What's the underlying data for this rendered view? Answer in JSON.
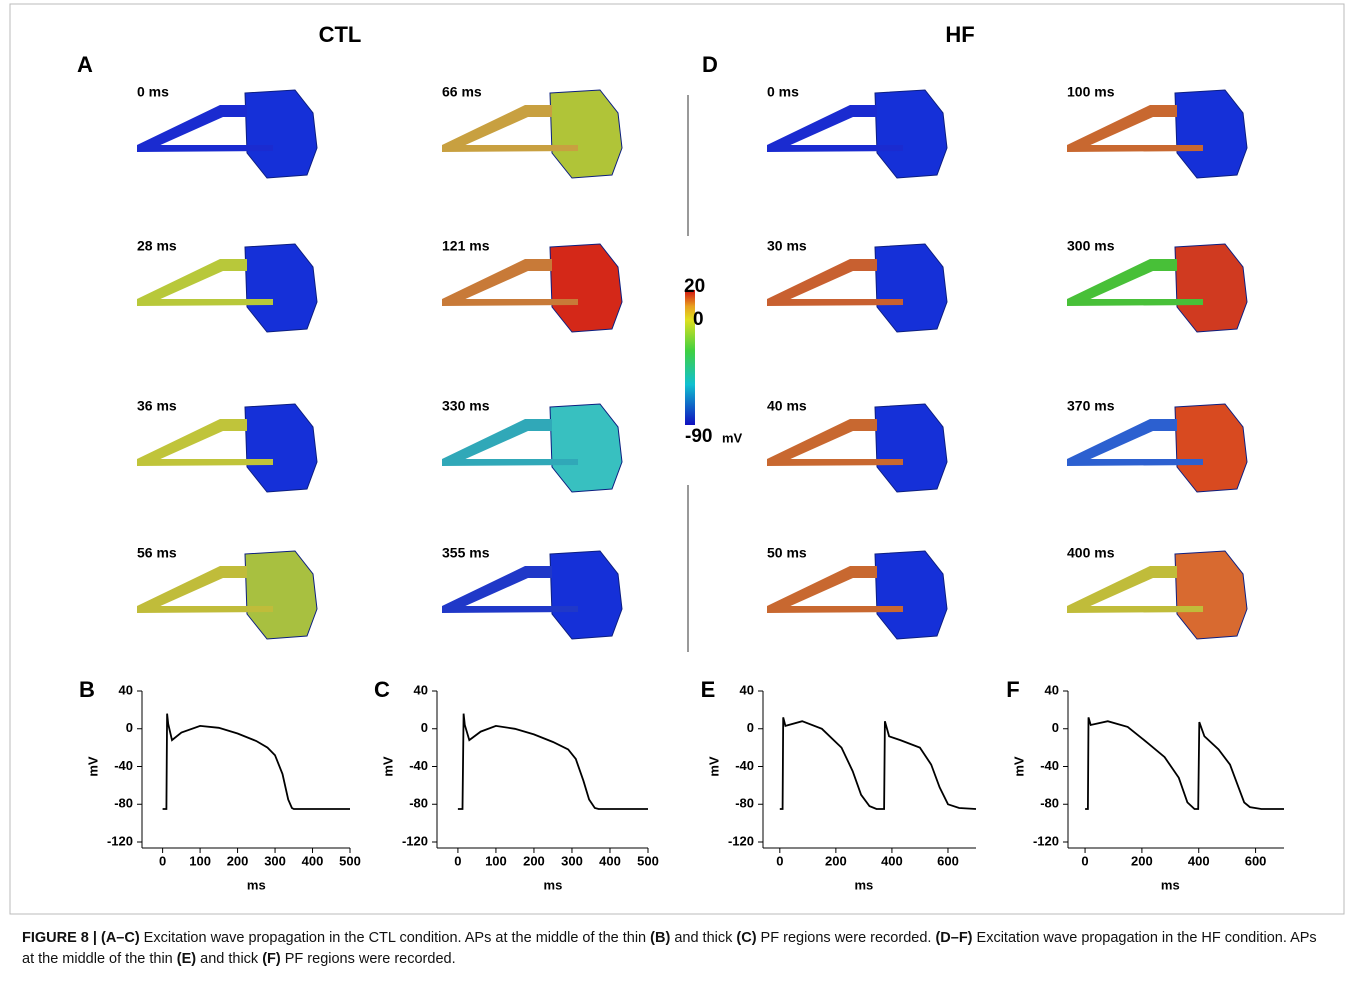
{
  "figure": {
    "columns": [
      {
        "title": "CTL",
        "panel": "A",
        "snapshots": [
          {
            "time": "0 ms",
            "cable_color": "#1a2bd0",
            "tissue_color": "#1530d8"
          },
          {
            "time": "28 ms",
            "cable_color": "#b8c83a",
            "tissue_color": "#1530d8"
          },
          {
            "time": "36 ms",
            "cable_color": "#c0c43a",
            "tissue_color": "#1530d8"
          },
          {
            "time": "56 ms",
            "cable_color": "#c0bc3a",
            "tissue_color": "#a8c040"
          },
          {
            "time": "66 ms",
            "cable_color": "#c8a040",
            "tissue_color": "#b0c438"
          },
          {
            "time": "121 ms",
            "cable_color": "#c87a38",
            "tissue_color": "#d42818"
          },
          {
            "time": "330 ms",
            "cable_color": "#30a8b8",
            "tissue_color": "#38c0c0"
          },
          {
            "time": "355 ms",
            "cable_color": "#2038c8",
            "tissue_color": "#1530d8"
          }
        ]
      },
      {
        "title": "HF",
        "panel": "D",
        "snapshots": [
          {
            "time": "0 ms",
            "cable_color": "#1a2bd0",
            "tissue_color": "#1530d8"
          },
          {
            "time": "30 ms",
            "cable_color": "#c86030",
            "tissue_color": "#1530d8"
          },
          {
            "time": "40 ms",
            "cable_color": "#c86830",
            "tissue_color": "#1530d8"
          },
          {
            "time": "50 ms",
            "cable_color": "#c86830",
            "tissue_color": "#1530d8"
          },
          {
            "time": "100 ms",
            "cable_color": "#c86830",
            "tissue_color": "#1530d8"
          },
          {
            "time": "300 ms",
            "cable_color": "#48c038",
            "tissue_color": "#d03a20"
          },
          {
            "time": "370 ms",
            "cable_color": "#2c60d0",
            "tissue_color": "#d84a20"
          },
          {
            "time": "400 ms",
            "cable_color": "#c0bc3a",
            "tissue_color": "#d86a30"
          }
        ]
      }
    ],
    "colorbar": {
      "max": "20",
      "zero": "0",
      "min": "-90",
      "unit": "mV"
    },
    "caption": [
      {
        "text": "FIGURE 8 | (A–C)",
        "bold": true
      },
      {
        "text": " Excitation wave propagation in the CTL condition. APs at the middle of the thin ",
        "bold": false
      },
      {
        "text": "(B)",
        "bold": true
      },
      {
        "text": " and thick ",
        "bold": false
      },
      {
        "text": "(C)",
        "bold": true
      },
      {
        "text": " PF regions were recorded. ",
        "bold": false
      },
      {
        "text": "(D–F)",
        "bold": true
      },
      {
        "text": " Excitation wave propagation in the HF condition. APs at the middle of the thin ",
        "bold": false
      },
      {
        "text": "(E)",
        "bold": true
      },
      {
        "text": " and thick ",
        "bold": false
      },
      {
        "text": "(F)",
        "bold": true
      },
      {
        "text": " PF regions were recorded.",
        "bold": false
      }
    ]
  },
  "chart_data": [
    {
      "type": "line",
      "panel": "B",
      "xlabel": "ms",
      "ylabel": "mV",
      "color": "#000000",
      "x": [
        0,
        10,
        12,
        15,
        25,
        50,
        100,
        150,
        200,
        250,
        280,
        300,
        320,
        335,
        345,
        350,
        400,
        500
      ],
      "values": [
        -85,
        -85,
        16,
        5,
        -12,
        -4,
        3,
        1,
        -5,
        -13,
        -20,
        -28,
        -48,
        -75,
        -84,
        -85,
        -85,
        -85
      ],
      "xlim": [
        -55,
        500
      ],
      "ylim": [
        -120,
        40
      ],
      "xticks": [
        0,
        100,
        200,
        300,
        400,
        500
      ],
      "yticks": [
        -120,
        -80,
        -40,
        0,
        40
      ]
    },
    {
      "type": "line",
      "panel": "C",
      "xlabel": "ms",
      "ylabel": "mV",
      "color": "#000000",
      "x": [
        0,
        12,
        15,
        18,
        30,
        60,
        100,
        150,
        200,
        250,
        290,
        310,
        330,
        345,
        360,
        370,
        420,
        500
      ],
      "values": [
        -85,
        -85,
        16,
        4,
        -12,
        -3,
        3,
        0,
        -6,
        -14,
        -22,
        -32,
        -55,
        -75,
        -84,
        -85,
        -85,
        -85
      ],
      "xlim": [
        -55,
        500
      ],
      "ylim": [
        -120,
        40
      ],
      "xticks": [
        0,
        100,
        200,
        300,
        400,
        500
      ],
      "yticks": [
        -120,
        -80,
        -40,
        0,
        40
      ]
    },
    {
      "type": "line",
      "panel": "E",
      "xlabel": "ms",
      "ylabel": "mV",
      "color": "#000000",
      "x": [
        0,
        10,
        12,
        20,
        80,
        150,
        220,
        260,
        290,
        320,
        345,
        372,
        375,
        390,
        430,
        500,
        540,
        570,
        600,
        640,
        700
      ],
      "values": [
        -85,
        -85,
        12,
        3,
        8,
        0,
        -20,
        -45,
        -70,
        -82,
        -85,
        -85,
        8,
        -8,
        -12,
        -20,
        -38,
        -62,
        -80,
        -84,
        -85
      ],
      "xlim": [
        -60,
        700
      ],
      "ylim": [
        -120,
        40
      ],
      "xticks": [
        0,
        200,
        400,
        600
      ],
      "yticks": [
        -120,
        -80,
        -40,
        0,
        40
      ]
    },
    {
      "type": "line",
      "panel": "F",
      "xlabel": "ms",
      "ylabel": "mV",
      "color": "#000000",
      "x": [
        0,
        10,
        12,
        20,
        80,
        150,
        220,
        280,
        330,
        360,
        385,
        398,
        402,
        420,
        470,
        510,
        540,
        560,
        580,
        620,
        700
      ],
      "values": [
        -85,
        -85,
        12,
        4,
        8,
        2,
        -15,
        -30,
        -52,
        -78,
        -85,
        -85,
        7,
        -8,
        -22,
        -38,
        -62,
        -78,
        -83,
        -85,
        -85
      ],
      "xlim": [
        -60,
        700
      ],
      "ylim": [
        -120,
        40
      ],
      "xticks": [
        0,
        200,
        400,
        600
      ],
      "yticks": [
        -120,
        -80,
        -40,
        0,
        40
      ]
    }
  ]
}
